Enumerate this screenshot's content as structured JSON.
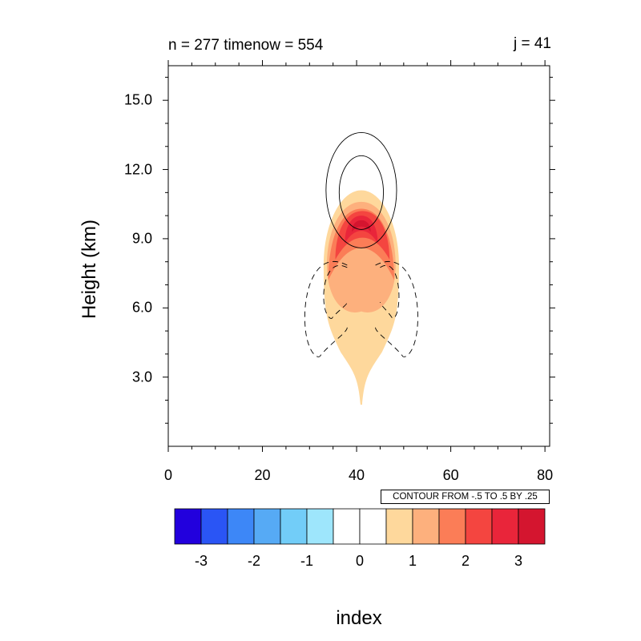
{
  "figure": {
    "title_left": "n = 277 timenow = 554",
    "title_right": "j = 41",
    "contour_info": "CONTOUR FROM -.5 TO .5 BY .25"
  },
  "chart_data": {
    "type": "contour",
    "xlabel": "",
    "ylabel": "Height (km)",
    "colorbar_label": "index",
    "xlim": [
      0,
      81
    ],
    "ylim": [
      0,
      16.5
    ],
    "x_ticks": [
      "0",
      "20",
      "40",
      "60",
      "80"
    ],
    "y_ticks": [
      "3.0",
      "6.0",
      "9.0",
      "12.0",
      "15.0"
    ],
    "colorbar": {
      "levels": [
        -3.5,
        -3,
        -2.5,
        -2,
        -1.5,
        -1,
        -0.5,
        0,
        0.5,
        1,
        1.5,
        2,
        2.5,
        3,
        3.5
      ],
      "tick_labels": [
        "-3",
        "-2",
        "-1",
        "0",
        "1",
        "2",
        "3"
      ],
      "colors": [
        "#2200dd",
        "#2a55f5",
        "#3d87f7",
        "#56aaf5",
        "#72cdf8",
        "#9ee6fc",
        "#ffffff",
        "#ffffff",
        "#fed89c",
        "#fdb07d",
        "#fb7d57",
        "#f44540",
        "#e9253a",
        "#d4152f"
      ]
    },
    "filled_shading": [
      {
        "level": 0.5,
        "color": "#fed89c",
        "extent_x": [
          33,
          49
        ],
        "extent_y": [
          1.8,
          11.1
        ]
      },
      {
        "level": 1.0,
        "color": "#fdb07d",
        "extent_x": [
          33.7,
          48.3
        ],
        "extent_y": [
          5.6,
          10.6
        ]
      },
      {
        "level": 1.5,
        "color": "#fb7d57",
        "extent_x": [
          34,
          48
        ],
        "extent_y": [
          7.2,
          10.3
        ]
      },
      {
        "level": 2.0,
        "color": "#f44540",
        "extent_x": [
          35.5,
          47
        ],
        "extent_y": [
          8.1,
          10.2
        ]
      },
      {
        "level": 2.5,
        "color": "#e9253a",
        "extent_x": [
          37.5,
          44.5
        ],
        "extent_y": [
          8.8,
          10.0
        ]
      },
      {
        "level": 3.0,
        "color": "#d4152f",
        "extent_x": [
          39,
          43
        ],
        "extent_y": [
          9.3,
          9.8
        ]
      }
    ],
    "contour_lines": [
      {
        "level": 0.25,
        "style": "solid",
        "center": [
          41,
          11.1
        ],
        "radius_x": 7.5,
        "radius_y": 2.5
      },
      {
        "level": 0.5,
        "style": "solid",
        "center": [
          41,
          11.0
        ],
        "radius_x": 4.7,
        "radius_y": 1.6
      },
      {
        "level": -0.25,
        "style": "dashed",
        "side": "left",
        "extent_x": [
          29,
          38
        ],
        "extent_y": [
          3.8,
          8.3
        ]
      },
      {
        "level": -0.25,
        "style": "dashed",
        "side": "right",
        "extent_x": [
          44,
          53
        ],
        "extent_y": [
          3.8,
          8.3
        ]
      },
      {
        "level": -0.5,
        "style": "dashed",
        "side": "left",
        "extent_x": [
          33,
          38
        ],
        "extent_y": [
          5.5,
          8.0
        ]
      },
      {
        "level": -0.5,
        "style": "dashed",
        "side": "right",
        "extent_x": [
          45,
          49
        ],
        "extent_y": [
          5.5,
          8.0
        ]
      }
    ]
  }
}
